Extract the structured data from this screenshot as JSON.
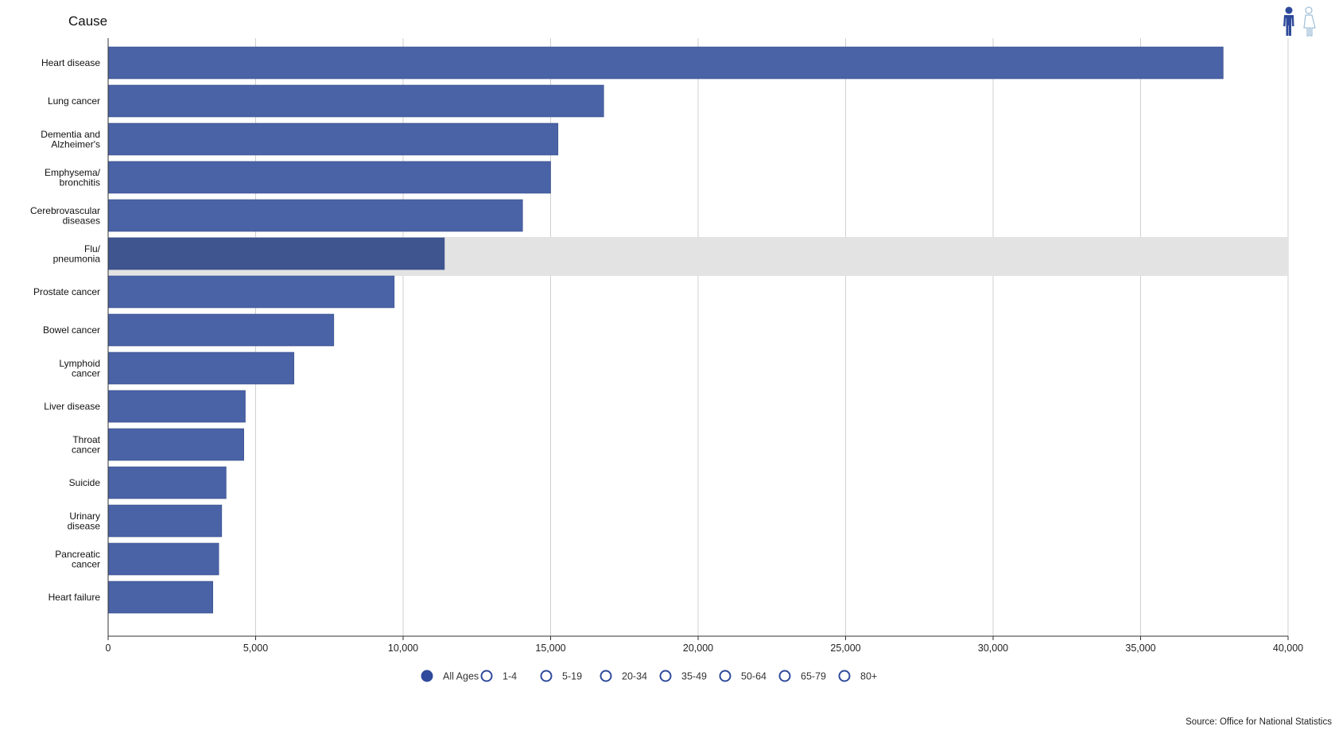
{
  "colors": {
    "bar": "#4a62a6",
    "bar_highlight": "#3f558f",
    "bar_stroke": "#3a4f8c",
    "highlight_band": "#e3e3e3",
    "grid": "#cfcfcf",
    "legend_selected": "#2f4a9a",
    "gender_male": "#2f4a9a",
    "gender_female": "#9fbfd8"
  },
  "controls": {
    "gender": [
      {
        "name": "male",
        "icon": "male-figure-icon",
        "selected": true
      },
      {
        "name": "female",
        "icon": "female-figure-icon",
        "selected": false
      }
    ]
  },
  "legend": {
    "items": [
      {
        "label": "All Ages",
        "selected": true
      },
      {
        "label": "1-4",
        "selected": false
      },
      {
        "label": "5-19",
        "selected": false
      },
      {
        "label": "20-34",
        "selected": false
      },
      {
        "label": "35-49",
        "selected": false
      },
      {
        "label": "50-64",
        "selected": false
      },
      {
        "label": "65-79",
        "selected": false
      },
      {
        "label": "80+",
        "selected": false
      }
    ]
  },
  "source": "Source: Office for National Statistics",
  "chart_data": {
    "type": "bar",
    "orientation": "horizontal",
    "title": "Cause",
    "xlabel": "",
    "ylabel": "Cause",
    "xlim": [
      0,
      40000
    ],
    "x_ticks": [
      0,
      5000,
      10000,
      15000,
      20000,
      25000,
      30000,
      35000,
      40000
    ],
    "x_tick_labels": [
      "0",
      "5,000",
      "10,000",
      "15,000",
      "20,000",
      "25,000",
      "30,000",
      "35,000",
      "40,000"
    ],
    "grid": true,
    "highlighted_category": "Flu/ pneumonia",
    "categories": [
      {
        "lines": [
          "Heart disease"
        ],
        "value": 37800
      },
      {
        "lines": [
          "Lung cancer"
        ],
        "value": 16800
      },
      {
        "lines": [
          "Dementia and",
          "Alzheimer's"
        ],
        "value": 15250
      },
      {
        "lines": [
          "Emphysema/",
          "bronchitis"
        ],
        "value": 15000
      },
      {
        "lines": [
          "Cerebrovascular",
          "diseases"
        ],
        "value": 14050
      },
      {
        "lines": [
          "Flu/",
          "pneumonia"
        ],
        "value": 11400
      },
      {
        "lines": [
          "Prostate cancer"
        ],
        "value": 9700
      },
      {
        "lines": [
          "Bowel cancer"
        ],
        "value": 7650
      },
      {
        "lines": [
          "Lymphoid",
          "cancer"
        ],
        "value": 6300
      },
      {
        "lines": [
          "Liver disease"
        ],
        "value": 4650
      },
      {
        "lines": [
          "Throat",
          "cancer"
        ],
        "value": 4600
      },
      {
        "lines": [
          "Suicide"
        ],
        "value": 4000
      },
      {
        "lines": [
          "Urinary",
          "disease"
        ],
        "value": 3850
      },
      {
        "lines": [
          "Pancreatic",
          "cancer"
        ],
        "value": 3750
      },
      {
        "lines": [
          "Heart failure"
        ],
        "value": 3550
      }
    ]
  }
}
